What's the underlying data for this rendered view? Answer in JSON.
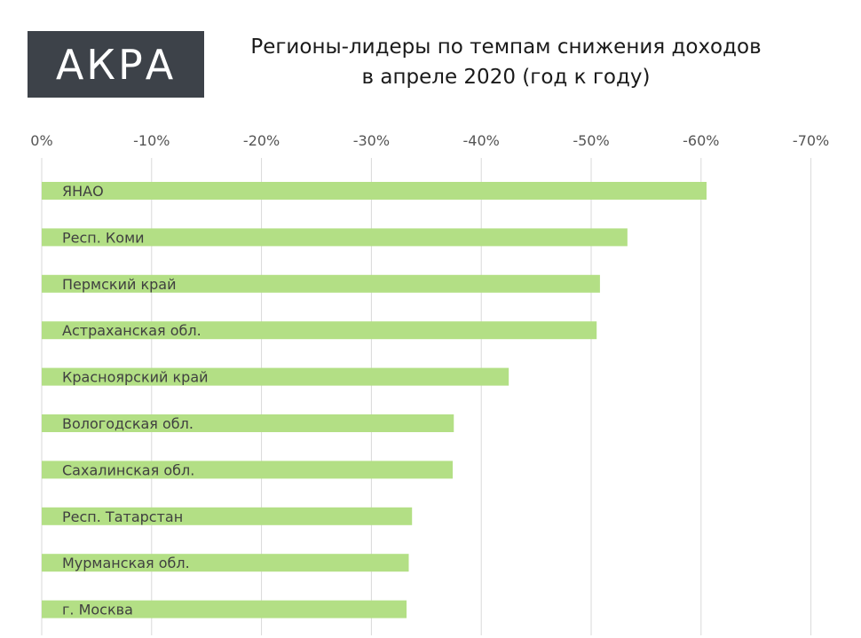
{
  "logo": {
    "text": "АКРА",
    "bg_color": "#3d4249",
    "text_color": "#ffffff"
  },
  "header": {
    "title_line1": "Регионы-лидеры по темпам снижения доходов",
    "title_line2": "в апреле 2020 (год к году)"
  },
  "chart_data": {
    "type": "bar",
    "orientation": "horizontal",
    "title": "Регионы-лидеры по темпам снижения доходов в апреле 2020 (год к году)",
    "xlabel": "",
    "ylabel": "",
    "xlim": [
      0,
      -70
    ],
    "grid": true,
    "bar_color": "#b3df85",
    "grid_color": "#d9d9d9",
    "ticks": [
      0,
      -10,
      -20,
      -30,
      -40,
      -50,
      -60,
      -70
    ],
    "tick_labels": [
      "0%",
      "-10%",
      "-20%",
      "-30%",
      "-40%",
      "-50%",
      "-60%",
      "-70%"
    ],
    "categories": [
      "ЯНАО",
      "Респ. Коми",
      "Пермский край",
      "Астраханская обл.",
      "Красноярский край",
      "Вологодская обл.",
      "Сахалинская обл.",
      "Респ. Татарстан",
      "Мурманская обл.",
      "г. Москва"
    ],
    "values": [
      -60.5,
      -53.3,
      -50.8,
      -50.5,
      -42.5,
      -37.5,
      -37.4,
      -33.7,
      -33.4,
      -33.2
    ]
  }
}
